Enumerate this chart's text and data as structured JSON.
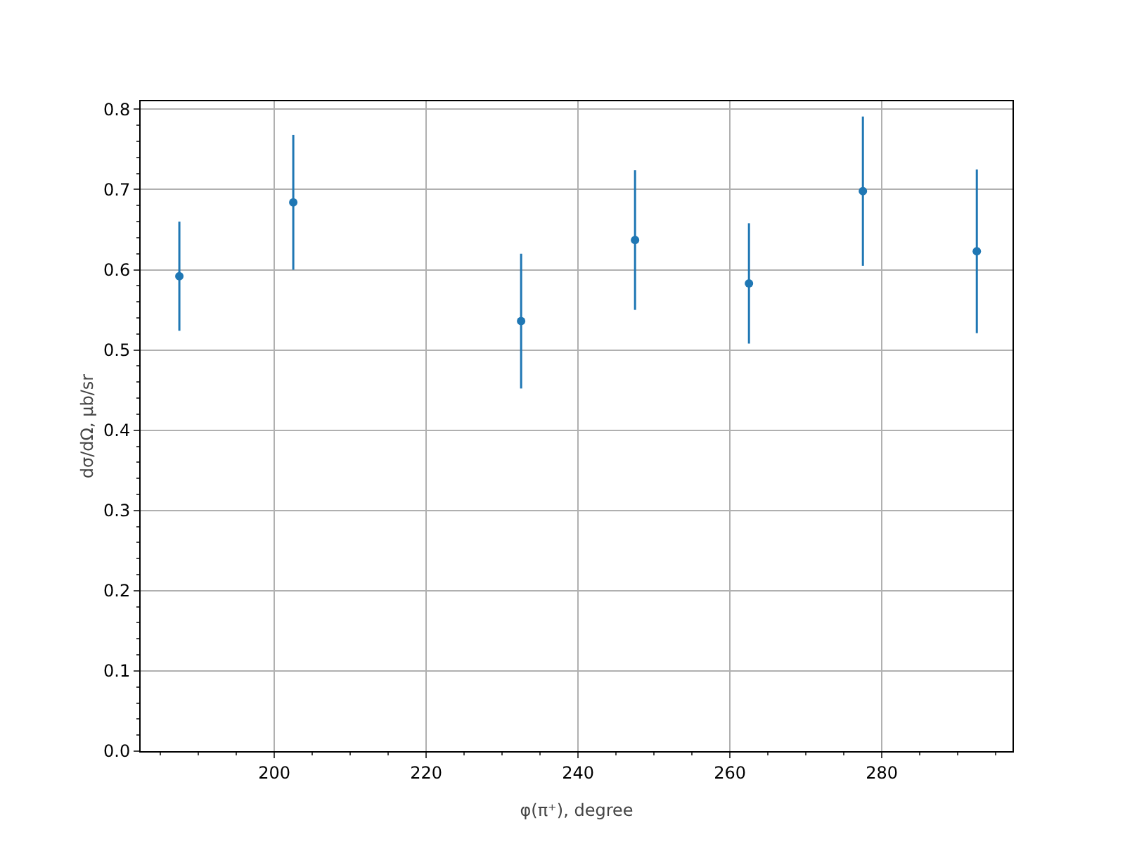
{
  "chart_data": {
    "type": "scatter",
    "xlabel": "φ(π⁺), degree",
    "ylabel": "dσ/dΩ, μb/sr",
    "x": [
      187.5,
      202.5,
      232.5,
      247.5,
      262.5,
      277.5,
      292.5
    ],
    "series": [
      {
        "color": "#1f77b4",
        "values": [
          0.592,
          0.684,
          0.536,
          0.637,
          0.583,
          0.698,
          0.623
        ],
        "errors": [
          0.068,
          0.084,
          0.084,
          0.087,
          0.075,
          0.093,
          0.102
        ]
      }
    ],
    "xlim": [
      182.4,
      297.2
    ],
    "xticks": [
      200,
      220,
      240,
      260,
      280
    ],
    "ylim": [
      0,
      0.81
    ],
    "yticks": [
      {
        "value": 0,
        "label": "0.0"
      },
      0.1,
      0.2,
      0.3,
      0.4,
      0.5,
      0.6,
      0.7,
      0.8
    ],
    "grid": true,
    "marker": "circle"
  }
}
